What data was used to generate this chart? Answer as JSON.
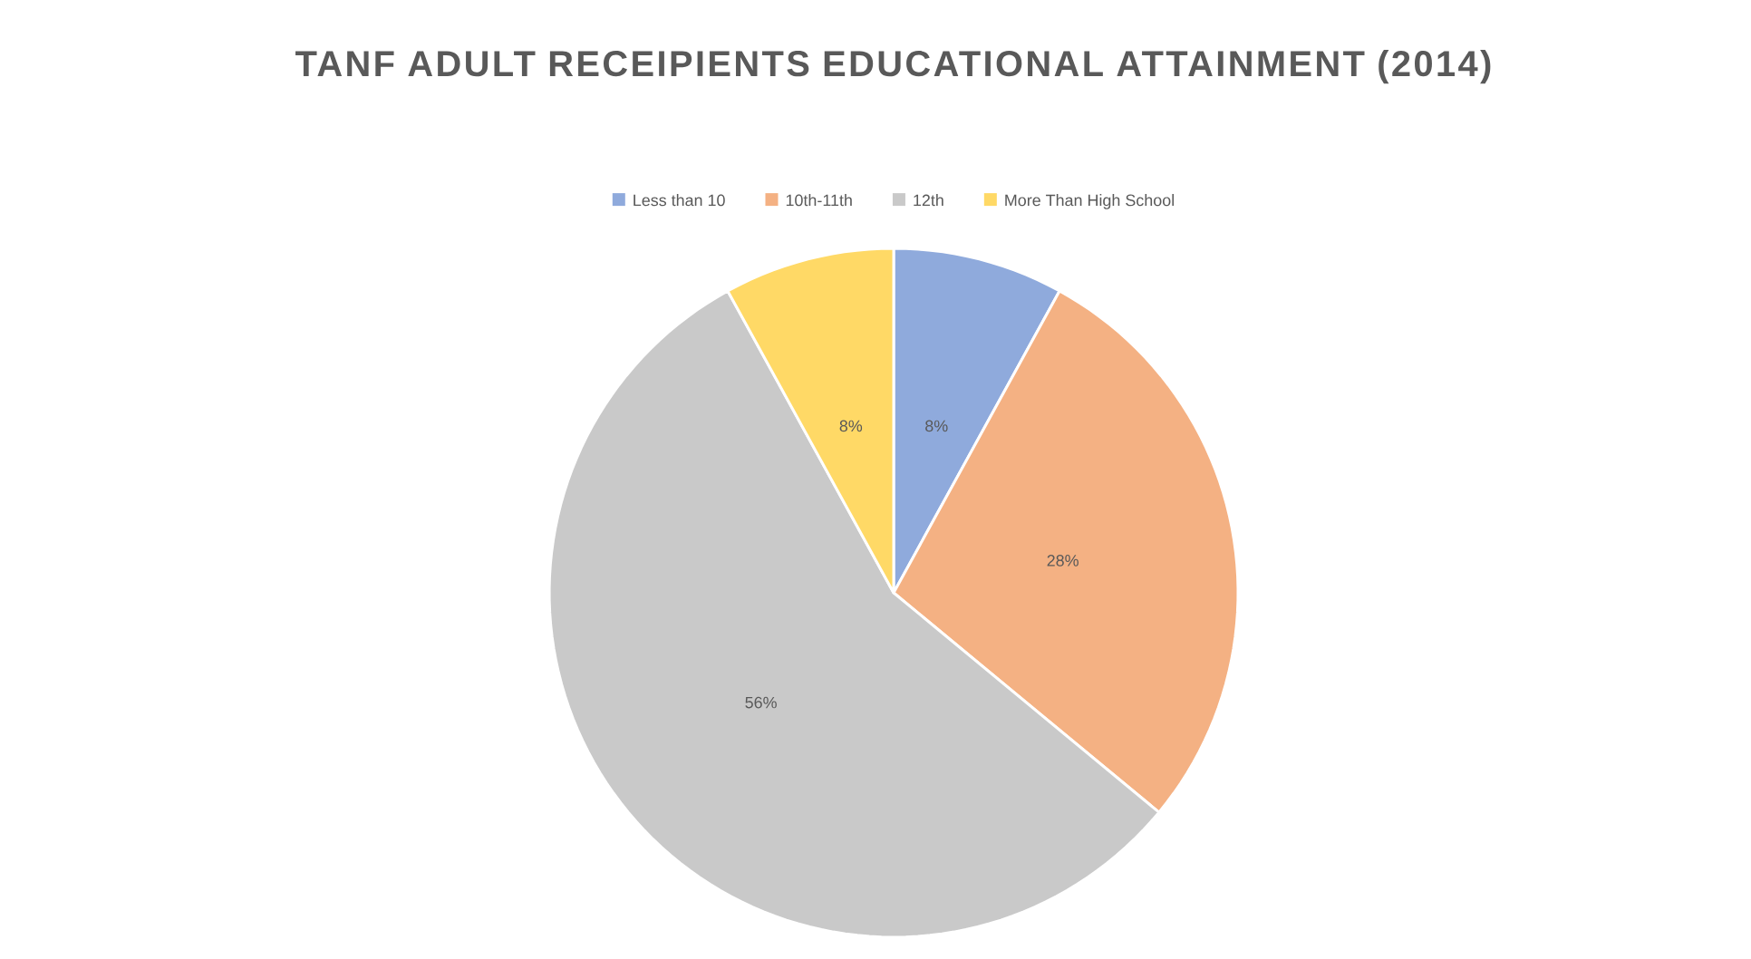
{
  "chart_data": {
    "type": "pie",
    "title": "TANF ADULT RECEIPIENTS EDUCATIONAL ATTAINMENT (2014)",
    "categories": [
      "Less than 10",
      "10th-11th",
      "12th",
      "More Than High School"
    ],
    "values": [
      8,
      28,
      56,
      8
    ],
    "value_labels": [
      "8%",
      "28%",
      "56%",
      "8%"
    ],
    "colors": [
      "#8faadc",
      "#f4b183",
      "#c9c9c9",
      "#ffd966"
    ],
    "legend": "top"
  }
}
